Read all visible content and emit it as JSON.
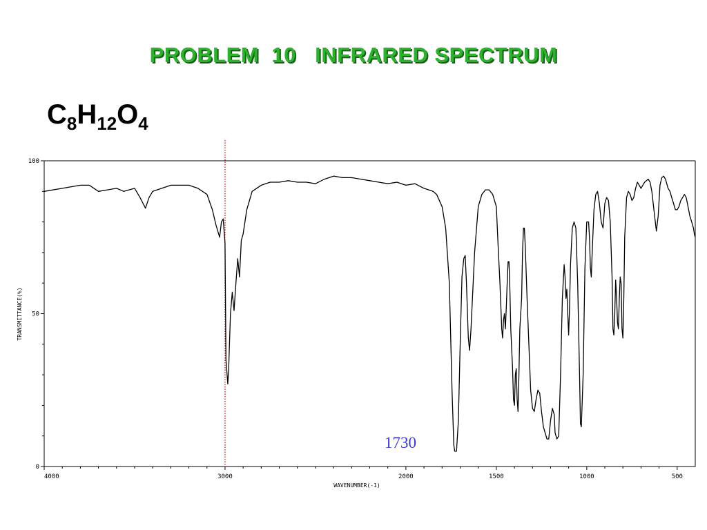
{
  "slide": {
    "title": "PROBLEM  10   INFRARED SPECTRUM",
    "formula": [
      {
        "el": "C",
        "n": "8"
      },
      {
        "el": "H",
        "n": "12"
      },
      {
        "el": "O",
        "n": "4"
      }
    ]
  },
  "chart_data": {
    "type": "line",
    "title": "",
    "xlabel": "WAVENUMBER(-1)",
    "ylabel": "TRANSMITTANCE(%)",
    "xlim": [
      4000,
      400
    ],
    "ylim": [
      0,
      100
    ],
    "x_ticks": [
      4000,
      3000,
      2000,
      1500,
      1000,
      500
    ],
    "x_tick_labels": [
      "4000",
      "3000",
      "2000",
      "1500",
      "1000",
      "500"
    ],
    "y_ticks": [
      0,
      50,
      100
    ],
    "y_tick_labels": [
      "0",
      "50",
      "100"
    ],
    "grid": false,
    "annotations": [
      {
        "text": "1730",
        "x": 1730,
        "y": 8,
        "color": "#3a3acc"
      }
    ],
    "reference_lines": [
      {
        "axis": "x",
        "value": 3000,
        "style": "dotted",
        "color": "#cc0000"
      }
    ],
    "series": [
      {
        "color": "#000000",
        "points": [
          [
            4000,
            90
          ],
          [
            3900,
            91
          ],
          [
            3800,
            92
          ],
          [
            3750,
            92
          ],
          [
            3700,
            90
          ],
          [
            3650,
            90.5
          ],
          [
            3600,
            91
          ],
          [
            3560,
            90
          ],
          [
            3500,
            91
          ],
          [
            3470,
            88
          ],
          [
            3440,
            84.5
          ],
          [
            3420,
            88
          ],
          [
            3400,
            90
          ],
          [
            3350,
            91
          ],
          [
            3300,
            92
          ],
          [
            3250,
            92
          ],
          [
            3200,
            92
          ],
          [
            3150,
            91
          ],
          [
            3100,
            89
          ],
          [
            3070,
            84
          ],
          [
            3050,
            79
          ],
          [
            3030,
            75
          ],
          [
            3020,
            80
          ],
          [
            3010,
            81
          ],
          [
            3000,
            73
          ],
          [
            2995,
            35
          ],
          [
            2985,
            27
          ],
          [
            2980,
            32
          ],
          [
            2970,
            50
          ],
          [
            2960,
            57
          ],
          [
            2950,
            51
          ],
          [
            2940,
            60
          ],
          [
            2930,
            68
          ],
          [
            2920,
            62
          ],
          [
            2910,
            74
          ],
          [
            2900,
            76
          ],
          [
            2880,
            84
          ],
          [
            2850,
            90
          ],
          [
            2800,
            92
          ],
          [
            2750,
            93
          ],
          [
            2700,
            93
          ],
          [
            2650,
            93.5
          ],
          [
            2600,
            93
          ],
          [
            2550,
            93
          ],
          [
            2500,
            92.5
          ],
          [
            2450,
            94
          ],
          [
            2400,
            95
          ],
          [
            2350,
            94.5
          ],
          [
            2300,
            94.5
          ],
          [
            2250,
            94
          ],
          [
            2200,
            93.5
          ],
          [
            2150,
            93
          ],
          [
            2100,
            92.5
          ],
          [
            2050,
            93
          ],
          [
            2000,
            92
          ],
          [
            1950,
            92.5
          ],
          [
            1900,
            91
          ],
          [
            1850,
            90
          ],
          [
            1830,
            89
          ],
          [
            1800,
            85
          ],
          [
            1780,
            78
          ],
          [
            1760,
            60
          ],
          [
            1745,
            25
          ],
          [
            1735,
            7
          ],
          [
            1730,
            5
          ],
          [
            1720,
            5
          ],
          [
            1710,
            15
          ],
          [
            1700,
            40
          ],
          [
            1690,
            62
          ],
          [
            1680,
            68
          ],
          [
            1672,
            69
          ],
          [
            1665,
            60
          ],
          [
            1655,
            42
          ],
          [
            1648,
            38
          ],
          [
            1640,
            45
          ],
          [
            1620,
            70
          ],
          [
            1600,
            85
          ],
          [
            1580,
            89
          ],
          [
            1560,
            90.5
          ],
          [
            1540,
            90.5
          ],
          [
            1520,
            89
          ],
          [
            1500,
            85
          ],
          [
            1490,
            72
          ],
          [
            1480,
            60
          ],
          [
            1470,
            45
          ],
          [
            1465,
            42
          ],
          [
            1460,
            48
          ],
          [
            1455,
            50
          ],
          [
            1450,
            45
          ],
          [
            1445,
            52
          ],
          [
            1440,
            60
          ],
          [
            1435,
            67
          ],
          [
            1430,
            67
          ],
          [
            1425,
            58
          ],
          [
            1420,
            45
          ],
          [
            1410,
            32
          ],
          [
            1405,
            22
          ],
          [
            1400,
            20
          ],
          [
            1395,
            30
          ],
          [
            1390,
            32
          ],
          [
            1385,
            22
          ],
          [
            1380,
            18
          ],
          [
            1375,
            30
          ],
          [
            1370,
            45
          ],
          [
            1360,
            55
          ],
          [
            1355,
            70
          ],
          [
            1350,
            78
          ],
          [
            1345,
            78
          ],
          [
            1340,
            72
          ],
          [
            1330,
            55
          ],
          [
            1320,
            40
          ],
          [
            1310,
            25
          ],
          [
            1300,
            19
          ],
          [
            1290,
            18
          ],
          [
            1280,
            22
          ],
          [
            1270,
            25
          ],
          [
            1260,
            24
          ],
          [
            1250,
            18
          ],
          [
            1240,
            13
          ],
          [
            1230,
            11
          ],
          [
            1220,
            9
          ],
          [
            1210,
            9
          ],
          [
            1200,
            15
          ],
          [
            1190,
            19
          ],
          [
            1180,
            17
          ],
          [
            1175,
            11
          ],
          [
            1165,
            9
          ],
          [
            1155,
            10
          ],
          [
            1145,
            30
          ],
          [
            1135,
            55
          ],
          [
            1125,
            66
          ],
          [
            1120,
            62
          ],
          [
            1115,
            55
          ],
          [
            1110,
            58
          ],
          [
            1105,
            50
          ],
          [
            1100,
            43
          ],
          [
            1095,
            52
          ],
          [
            1090,
            66
          ],
          [
            1080,
            78
          ],
          [
            1070,
            80
          ],
          [
            1060,
            78
          ],
          [
            1050,
            60
          ],
          [
            1040,
            30
          ],
          [
            1035,
            14
          ],
          [
            1030,
            13
          ],
          [
            1020,
            30
          ],
          [
            1010,
            65
          ],
          [
            1000,
            80
          ],
          [
            990,
            80
          ],
          [
            985,
            75
          ],
          [
            980,
            65
          ],
          [
            975,
            62
          ],
          [
            970,
            70
          ],
          [
            960,
            84
          ],
          [
            950,
            89
          ],
          [
            940,
            90
          ],
          [
            930,
            86
          ],
          [
            920,
            80
          ],
          [
            910,
            78
          ],
          [
            900,
            86
          ],
          [
            890,
            88
          ],
          [
            880,
            87
          ],
          [
            870,
            80
          ],
          [
            860,
            62
          ],
          [
            855,
            45
          ],
          [
            850,
            43
          ],
          [
            845,
            50
          ],
          [
            840,
            61
          ],
          [
            835,
            55
          ],
          [
            830,
            47
          ],
          [
            825,
            45
          ],
          [
            820,
            55
          ],
          [
            815,
            62
          ],
          [
            810,
            60
          ],
          [
            805,
            45
          ],
          [
            800,
            42
          ],
          [
            795,
            55
          ],
          [
            790,
            75
          ],
          [
            780,
            88
          ],
          [
            770,
            90
          ],
          [
            760,
            89
          ],
          [
            750,
            87
          ],
          [
            740,
            88
          ],
          [
            730,
            91
          ],
          [
            720,
            93
          ],
          [
            710,
            92
          ],
          [
            700,
            91
          ],
          [
            690,
            92
          ],
          [
            680,
            93
          ],
          [
            670,
            93.5
          ],
          [
            660,
            94
          ],
          [
            650,
            93
          ],
          [
            640,
            90
          ],
          [
            625,
            82
          ],
          [
            615,
            77
          ],
          [
            605,
            82
          ],
          [
            595,
            92
          ],
          [
            585,
            94.5
          ],
          [
            575,
            95
          ],
          [
            565,
            94
          ],
          [
            550,
            91
          ],
          [
            540,
            90
          ],
          [
            530,
            88
          ],
          [
            520,
            86
          ],
          [
            510,
            84
          ],
          [
            500,
            84
          ],
          [
            490,
            85
          ],
          [
            480,
            87
          ],
          [
            470,
            88
          ],
          [
            460,
            89
          ],
          [
            450,
            88
          ],
          [
            440,
            85
          ],
          [
            430,
            82
          ],
          [
            420,
            80
          ],
          [
            410,
            78
          ],
          [
            405,
            76
          ],
          [
            400,
            75
          ]
        ]
      }
    ]
  }
}
